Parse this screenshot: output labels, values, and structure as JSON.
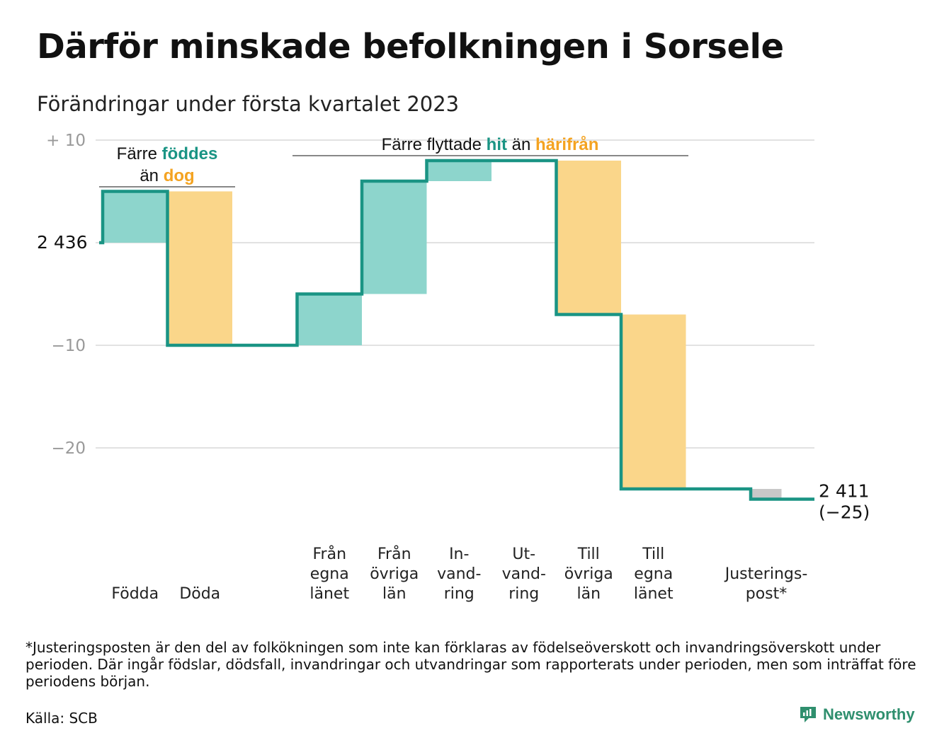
{
  "title": "Därför minskade befolkningen i Sorsele",
  "subtitle": "Förändringar under första kvartalet 2023",
  "chart_data": {
    "type": "bar",
    "subtype": "waterfall",
    "start_value": 2436,
    "start_label": "2 436",
    "end_value": 2411,
    "end_label": "2 411",
    "end_change_label": "(−25)",
    "yticks": [
      {
        "value": 10,
        "label": "+ 10"
      },
      {
        "value": 0,
        "label": ""
      },
      {
        "value": -10,
        "label": "−10"
      },
      {
        "value": -20,
        "label": "−20"
      }
    ],
    "ylim": [
      -25,
      10
    ],
    "grid": true,
    "categories": [
      {
        "label": [
          "Födda"
        ],
        "change": 5,
        "kind": "plus"
      },
      {
        "label": [
          "Döda"
        ],
        "change": -15,
        "kind": "minus"
      },
      {
        "label": [
          ""
        ],
        "change": 0,
        "kind": "none"
      },
      {
        "label": [
          "Från",
          "egna",
          "länet"
        ],
        "change": 5,
        "kind": "plus"
      },
      {
        "label": [
          "Från",
          "övriga",
          "län"
        ],
        "change": 11,
        "kind": "plus"
      },
      {
        "label": [
          "In-",
          "vand-",
          "ring"
        ],
        "change": 2,
        "kind": "plus"
      },
      {
        "label": [
          "Ut-",
          "vand-",
          "ring"
        ],
        "change": 0,
        "kind": "minus"
      },
      {
        "label": [
          "Till",
          "övriga",
          "län"
        ],
        "change": -15,
        "kind": "minus"
      },
      {
        "label": [
          "Till",
          "egna",
          "länet"
        ],
        "change": -17,
        "kind": "minus"
      },
      {
        "label": [
          ""
        ],
        "change": 0,
        "kind": "none"
      },
      {
        "label": [
          "Justerings-",
          "post*"
        ],
        "change": -1,
        "kind": "adjust"
      }
    ],
    "annotations": [
      {
        "parts": [
          [
            {
              "text": "Färre ",
              "style": "plain"
            },
            {
              "text": "föddes",
              "style": "teal"
            }
          ],
          [
            {
              "text": "än ",
              "style": "plain"
            },
            {
              "text": "dog",
              "style": "orange"
            }
          ]
        ],
        "span": [
          0,
          1
        ]
      },
      {
        "parts": [
          [
            {
              "text": "Färre flyttade ",
              "style": "plain"
            },
            {
              "text": "hit",
              "style": "teal"
            },
            {
              "text": " än ",
              "style": "plain"
            },
            {
              "text": "härifrån",
              "style": "orange"
            }
          ]
        ],
        "span": [
          3,
          8
        ]
      }
    ],
    "colors": {
      "plus": "#8dd5cc",
      "minus": "#fad68a",
      "adjust": "#c8c8c8",
      "line": "#1a9484",
      "grid": "#e2e2e2"
    }
  },
  "footnote": "*Justeringsposten är den del av folkökningen som inte kan förklaras av födelseöverskott och invandringsöverskott under perioden. Där ingår födslar, dödsfall, invandringar och utvandringar som rapporterats under perioden, men som inträffat före periodens början.",
  "source": "Källa: SCB",
  "brand": "Newsworthy"
}
